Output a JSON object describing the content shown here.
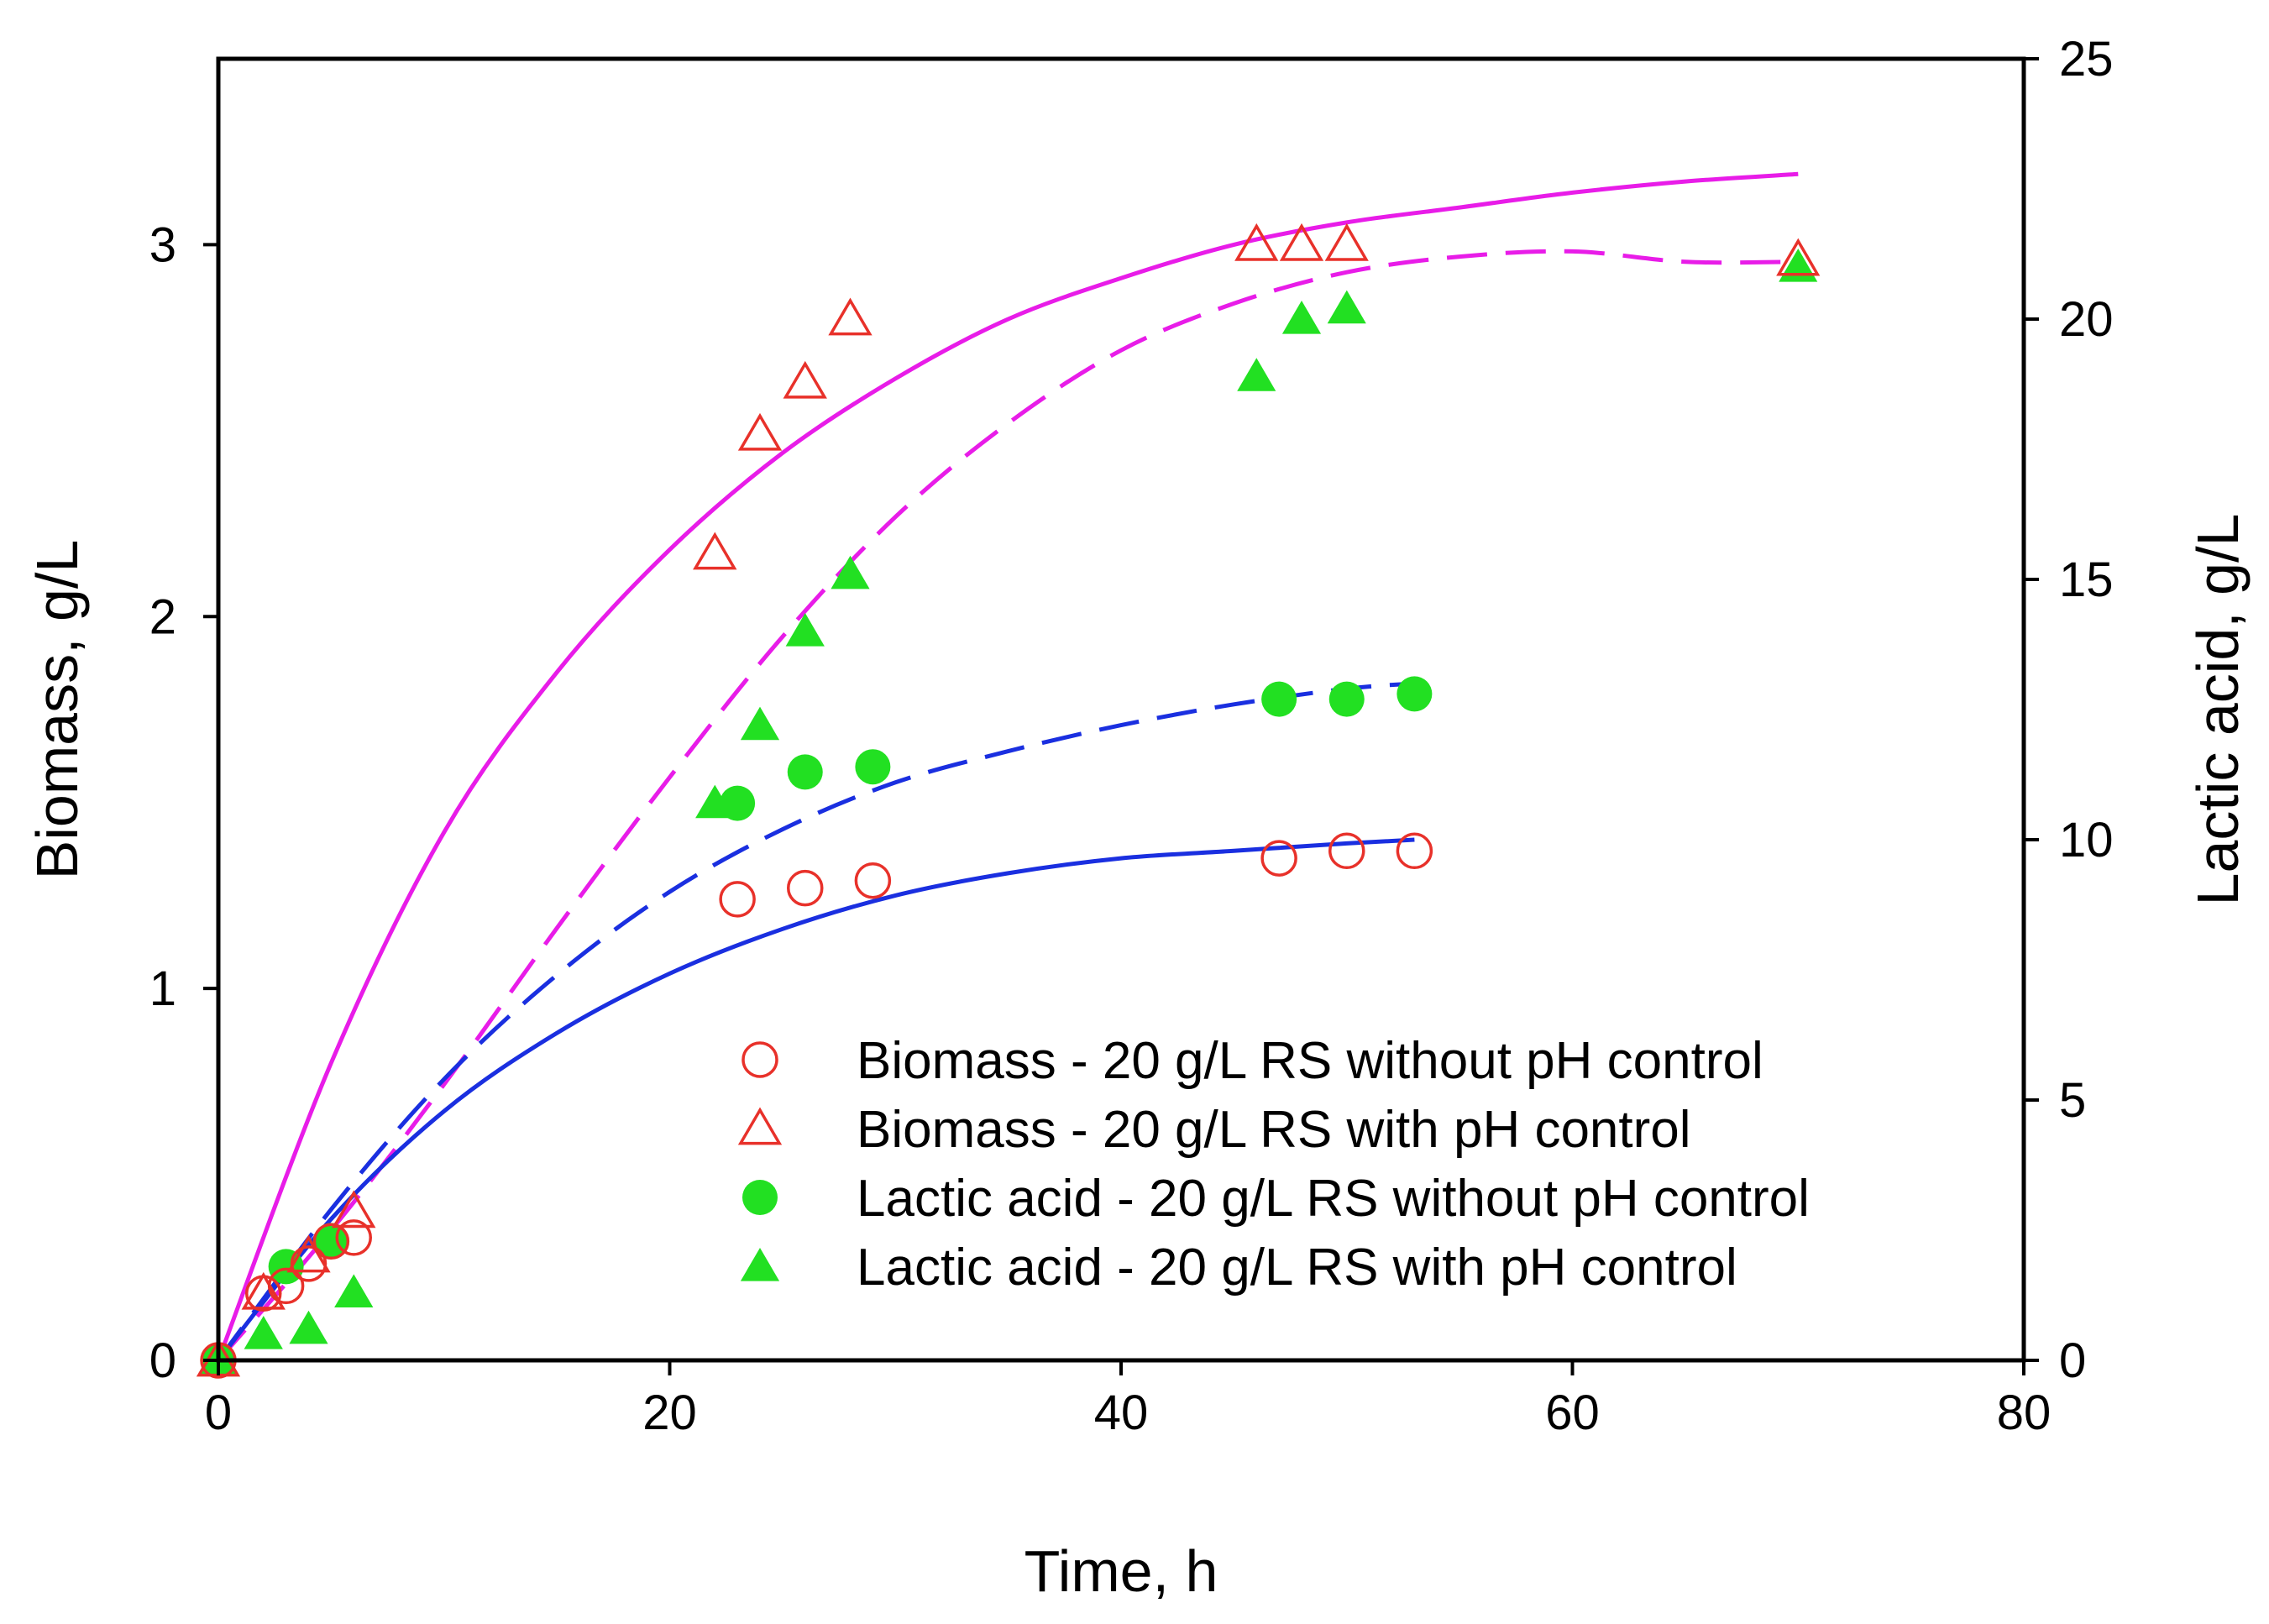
{
  "chart_data": {
    "type": "scatter",
    "title": "",
    "xlabel": "Time, h",
    "ylabel": "Biomass, g/L",
    "y2label": "Lactic acid, g/L",
    "xlim": [
      0,
      80
    ],
    "ylim": [
      0,
      3.5
    ],
    "y2lim": [
      0,
      25
    ],
    "xticks": [
      "0",
      "20",
      "40",
      "60",
      "80"
    ],
    "yticks": [
      "0",
      "1",
      "2",
      "3"
    ],
    "y2ticks": [
      "0",
      "5",
      "10",
      "15",
      "20",
      "25"
    ],
    "grid": false,
    "legend_position": "bottom-right",
    "colors": {
      "open_marker": "#e8312a",
      "filled_marker": "#22e022",
      "fit_magenta": "#e81ce8",
      "fit_blue": "#1a2fe0"
    },
    "series": [
      {
        "name": "Biomass - 20 g/L RS without pH control",
        "axis": "left",
        "marker": "circle-open",
        "color": "#e8312a",
        "x": [
          0,
          2,
          3,
          4,
          5,
          6,
          23,
          26,
          29,
          47,
          50,
          53
        ],
        "y": [
          0,
          0.18,
          0.2,
          0.26,
          0.32,
          0.33,
          1.24,
          1.27,
          1.29,
          1.35,
          1.37,
          1.37
        ]
      },
      {
        "name": "Biomass - 20 g/L RS with pH control",
        "axis": "left",
        "marker": "triangle-open",
        "color": "#e8312a",
        "x": [
          0,
          2,
          4,
          6,
          22,
          24,
          26,
          28,
          46,
          48,
          50,
          70
        ],
        "y": [
          0,
          0.18,
          0.28,
          0.4,
          2.17,
          2.49,
          2.63,
          2.8,
          3.0,
          3.0,
          3.0,
          2.96
        ]
      },
      {
        "name": "Lactic acid - 20 g/L RS without pH control",
        "axis": "right",
        "marker": "circle-filled",
        "color": "#22e022",
        "x": [
          0,
          3,
          5,
          23,
          26,
          29,
          47,
          50,
          53
        ],
        "y": [
          0,
          1.8,
          2.3,
          10.7,
          11.3,
          11.4,
          12.7,
          12.7,
          12.8
        ]
      },
      {
        "name": "Lactic acid - 20 g/L RS with pH control",
        "axis": "right",
        "marker": "triangle-filled",
        "color": "#22e022",
        "x": [
          0,
          2,
          4,
          6,
          22,
          24,
          26,
          28,
          46,
          48,
          50,
          70
        ],
        "y": [
          0,
          0.5,
          0.6,
          1.3,
          10.7,
          12.2,
          14.0,
          15.1,
          18.9,
          20.0,
          20.2,
          21.0
        ]
      }
    ],
    "fits": [
      {
        "name": "Biomass fit with pH control",
        "axis": "left",
        "style": "solid",
        "color": "#e81ce8",
        "x": [
          0,
          5,
          10,
          15,
          20,
          25,
          30,
          35,
          40,
          45,
          50,
          55,
          60,
          65,
          70
        ],
        "y": [
          0,
          0.8,
          1.42,
          1.85,
          2.18,
          2.44,
          2.64,
          2.8,
          2.91,
          3.0,
          3.06,
          3.1,
          3.14,
          3.17,
          3.19
        ]
      },
      {
        "name": "Lactic acid fit with pH control",
        "axis": "right",
        "style": "dashed",
        "color": "#e81ce8",
        "x": [
          0,
          5,
          10,
          15,
          20,
          25,
          30,
          35,
          40,
          45,
          50,
          55,
          60,
          65,
          70
        ],
        "y": [
          0,
          2.5,
          5.3,
          8.3,
          11.2,
          13.9,
          16.2,
          18.0,
          19.4,
          20.3,
          20.9,
          21.2,
          21.3,
          21.1,
          21.1
        ]
      },
      {
        "name": "Biomass fit without pH control",
        "axis": "left",
        "style": "solid",
        "color": "#1a2fe0",
        "x": [
          0,
          5,
          10,
          15,
          20,
          25,
          30,
          35,
          40,
          45,
          50,
          53
        ],
        "y": [
          0,
          0.38,
          0.67,
          0.88,
          1.04,
          1.16,
          1.25,
          1.31,
          1.35,
          1.37,
          1.39,
          1.4
        ]
      },
      {
        "name": "Lactic acid fit without pH control",
        "axis": "right",
        "style": "dashed",
        "color": "#1a2fe0",
        "x": [
          0,
          5,
          10,
          15,
          20,
          25,
          30,
          35,
          40,
          45,
          50,
          53
        ],
        "y": [
          0,
          2.9,
          5.4,
          7.4,
          9.0,
          10.2,
          11.1,
          11.7,
          12.2,
          12.6,
          12.9,
          13.0
        ]
      }
    ]
  }
}
